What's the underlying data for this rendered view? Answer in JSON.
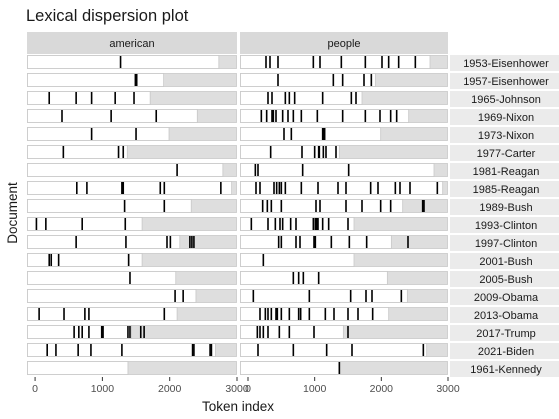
{
  "chart_data": {
    "type": "dispersion",
    "title": "Lexical dispersion plot",
    "xlabel": "Token index",
    "ylabel": "Document",
    "xlim": [
      -120,
      3000
    ],
    "xticks": [
      0,
      1000,
      2000,
      3000
    ],
    "facets": [
      "american",
      "people"
    ],
    "documents": [
      {
        "name": "1953-Eisenhower",
        "length": 2730,
        "american": [
          1270
        ],
        "people": [
          270,
          330,
          450,
          980,
          1080,
          1400,
          1760,
          2010,
          2110,
          2260,
          2510
        ]
      },
      {
        "name": "1957-Eisenhower",
        "length": 1910,
        "american": [
          1490,
          1510
        ],
        "people": [
          450,
          1280,
          1420,
          1740,
          1850
        ]
      },
      {
        "name": "1965-Johnson",
        "length": 1710,
        "american": [
          210,
          610,
          840,
          1190,
          1470
        ],
        "people": [
          300,
          360,
          560,
          620,
          700,
          1120,
          1550,
          1620
        ]
      },
      {
        "name": "1969-Nixon",
        "length": 2410,
        "american": [
          400,
          1130,
          1800
        ],
        "people": [
          200,
          280,
          360,
          380,
          420,
          520,
          600,
          680,
          800,
          1040,
          1420,
          1760,
          1980,
          2140,
          2230
        ]
      },
      {
        "name": "1973-Nixon",
        "length": 1990,
        "american": [
          840,
          1500
        ],
        "people": [
          540,
          650,
          1120,
          1130,
          1140,
          1150
        ]
      },
      {
        "name": "1977-Carter",
        "length": 1370,
        "american": [
          420,
          1240,
          1310
        ],
        "people": [
          340,
          810,
          1000,
          1060,
          1070,
          1130,
          1170,
          1320
        ]
      },
      {
        "name": "1981-Reagan",
        "length": 2790,
        "american": [
          2110
        ],
        "people": [
          110,
          150,
          820,
          1510
        ]
      },
      {
        "name": "1985-Reagan",
        "length": 2920,
        "american": [
          620,
          770,
          1290,
          1310,
          1860,
          1920,
          2760
        ],
        "people": [
          120,
          180,
          390,
          430,
          470,
          500,
          560,
          800,
          1050,
          1350,
          1470,
          1840,
          1950,
          2210,
          2280,
          2430,
          2840
        ]
      },
      {
        "name": "1989-Bush",
        "length": 2320,
        "american": [
          1330,
          1920
        ],
        "people": [
          220,
          290,
          350,
          500,
          1020,
          1080,
          1470,
          1710,
          1990,
          2140,
          2620,
          2640
        ]
      },
      {
        "name": "1993-Clinton",
        "length": 1590,
        "american": [
          20,
          160,
          700,
          1340
        ],
        "people": [
          50,
          300,
          410,
          480,
          520,
          640,
          720,
          980,
          1010,
          1030,
          1050,
          1120,
          1210,
          1500
        ]
      },
      {
        "name": "1997-Clinton",
        "length": 2150,
        "american": [
          610,
          1350,
          1960,
          2010,
          2300,
          2330,
          2360
        ],
        "people": [
          460,
          500,
          720,
          780,
          990,
          1010,
          1250,
          1520,
          1780,
          2400
        ]
      },
      {
        "name": "2001-Bush",
        "length": 1590,
        "american": [
          210,
          240,
          350,
          1390
        ],
        "people": [
          230
        ]
      },
      {
        "name": "2005-Bush",
        "length": 2090,
        "american": [
          1410
        ],
        "people": [
          680,
          760,
          830,
          1060
        ]
      },
      {
        "name": "2009-Obama",
        "length": 2390,
        "american": [
          2080,
          2200
        ],
        "people": [
          80,
          920,
          1540,
          1770,
          1860,
          2300
        ]
      },
      {
        "name": "2013-Obama",
        "length": 2110,
        "american": [
          60,
          430,
          740,
          800,
          1920
        ],
        "people": [
          180,
          260,
          300,
          350,
          420,
          440,
          500,
          620,
          760,
          790,
          920,
          1160,
          1290,
          1500,
          1650,
          1870
        ]
      },
      {
        "name": "2017-Trump",
        "length": 1430,
        "american": [
          580,
          650,
          700,
          800,
          990,
          1010,
          1380,
          1410,
          1570,
          1620
        ],
        "people": [
          140,
          180,
          230,
          300,
          470,
          620,
          990,
          1500
        ]
      },
      {
        "name": "2021-Biden",
        "length": 2680,
        "american": [
          180,
          310,
          640,
          830,
          1290,
          2340,
          2360,
          2600,
          2620
        ],
        "people": [
          150,
          680,
          1180,
          1560,
          2630
        ]
      },
      {
        "name": "1961-Kennedy",
        "length": 1380,
        "american": [],
        "people": [
          1370
        ]
      }
    ]
  },
  "colors": {
    "strip_bg": "#d9d9d9",
    "doc_bg": "#ebebeb",
    "panel_fill": "#ffffff",
    "panel_stroke": "#c8c8c8",
    "outside": "#dedede",
    "mark": "#000000",
    "axis_tick": "#333333"
  }
}
